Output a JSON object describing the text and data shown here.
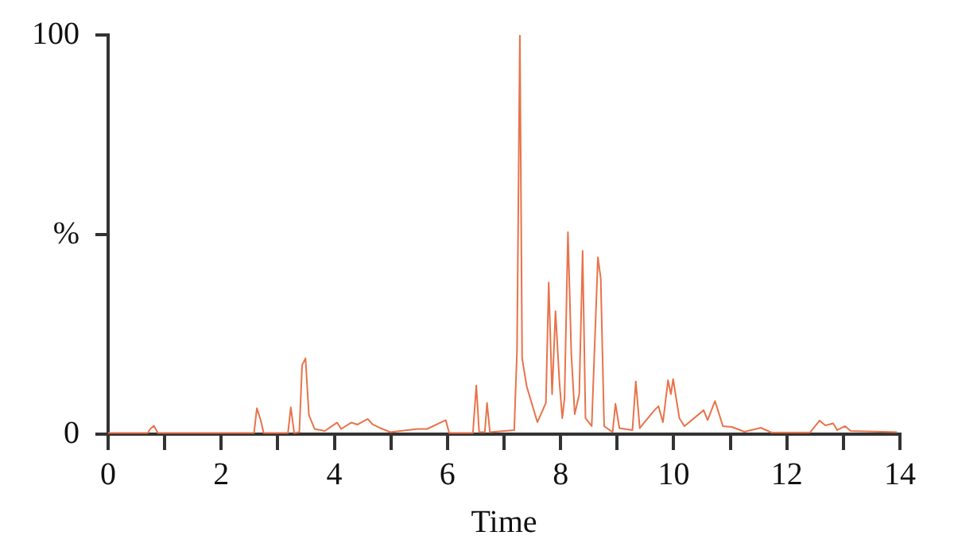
{
  "chart_data": {
    "type": "line",
    "xlabel": "Time",
    "x": [
      0,
      0.7,
      0.75,
      0.81,
      0.88,
      2.58,
      2.63,
      2.7,
      2.75,
      3.18,
      3.23,
      3.29,
      3.38,
      3.43,
      3.49,
      3.55,
      3.65,
      3.83,
      4.05,
      4.12,
      4.3,
      4.41,
      4.59,
      4.68,
      4.8,
      4.99,
      5.47,
      5.64,
      5.97,
      6.03,
      6.45,
      6.51,
      6.56,
      6.66,
      6.7,
      6.75,
      7.18,
      7.23,
      7.28,
      7.32,
      7.4,
      7.59,
      7.74,
      7.79,
      7.85,
      7.91,
      7.98,
      8.03,
      8.07,
      8.13,
      8.19,
      8.25,
      8.33,
      8.39,
      8.44,
      8.55,
      8.66,
      8.71,
      8.77,
      8.92,
      8.97,
      9.04,
      9.27,
      9.33,
      9.4,
      9.66,
      9.73,
      9.81,
      9.9,
      9.95,
      9.99,
      10.1,
      10.19,
      10.53,
      10.6,
      10.73,
      10.87,
      11.03,
      11.25,
      11.54,
      11.73,
      12.41,
      12.58,
      12.68,
      12.82,
      12.89,
      13.03,
      13.13,
      13.95
    ],
    "series": [
      {
        "color": "#e8734a",
        "values": [
          0.3,
          0.3,
          1.4,
          2.1,
          0.3,
          0.3,
          6.5,
          3.4,
          0.3,
          0.3,
          6.7,
          0.3,
          0.5,
          17.3,
          19,
          4.8,
          1.3,
          0.8,
          2.9,
          1.3,
          2.9,
          2.4,
          3.8,
          2.4,
          1.6,
          0.5,
          1.3,
          1.3,
          3.5,
          0.3,
          0.3,
          12.2,
          0.5,
          0.5,
          7.8,
          0.5,
          1,
          21,
          100,
          19,
          12,
          3,
          7.8,
          38,
          10,
          30.8,
          13,
          4,
          9,
          50.6,
          20,
          5,
          10,
          45.9,
          4,
          2,
          44.3,
          39,
          2,
          0.5,
          7.6,
          1.5,
          1,
          13.2,
          1.5,
          6,
          7,
          3,
          13.5,
          10,
          13.8,
          4,
          2,
          6,
          3.5,
          8.3,
          2,
          1.8,
          0.6,
          1.6,
          0.4,
          0.4,
          3.4,
          2.2,
          2.7,
          1,
          2,
          0.8,
          0.5
        ]
      }
    ],
    "xlim": [
      0,
      14
    ],
    "xticks": [
      0,
      {
        "value": 1,
        "label": null
      },
      2,
      {
        "value": 3,
        "label": null
      },
      4,
      {
        "value": 5,
        "label": null
      },
      6,
      {
        "value": 7,
        "label": null
      },
      8,
      {
        "value": 9,
        "label": null
      },
      10,
      {
        "value": 11,
        "label": null
      },
      12,
      {
        "value": 13,
        "label": null
      },
      14
    ],
    "ylim": [
      0,
      100
    ],
    "yticks": [
      0,
      {
        "value": 50,
        "label": "%"
      },
      100
    ],
    "grid": false,
    "legend": false,
    "marker": "none",
    "line_style": "solid"
  }
}
